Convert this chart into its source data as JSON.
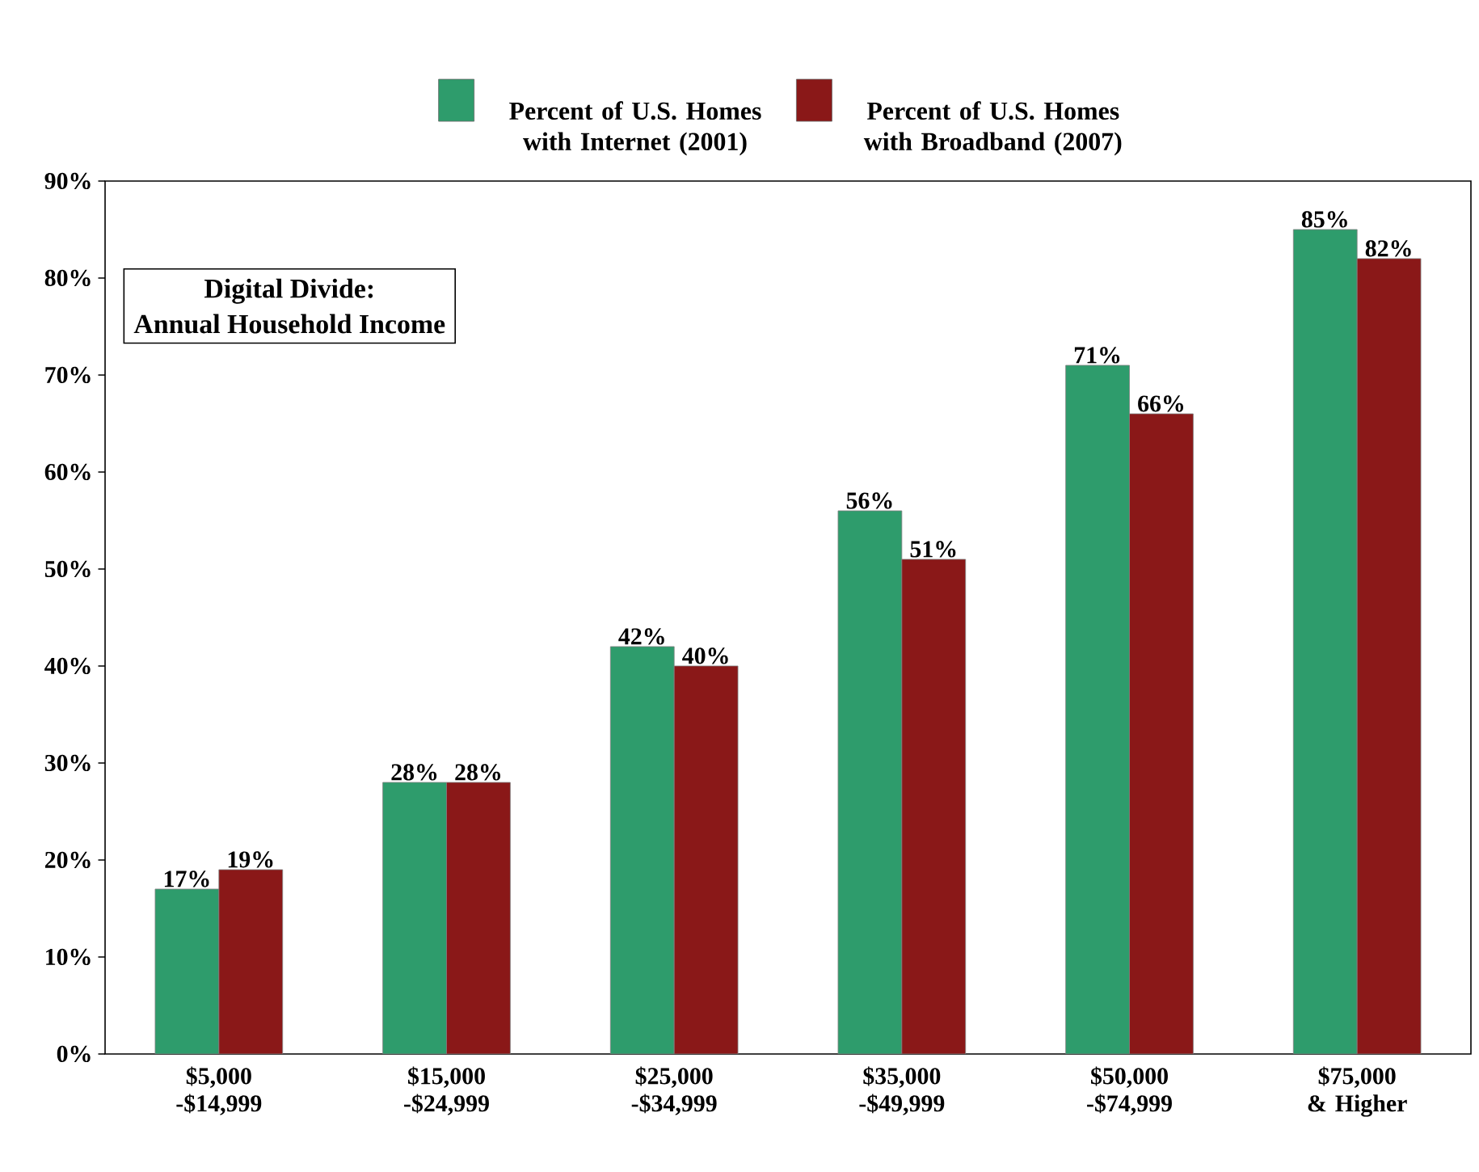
{
  "chart_data": {
    "type": "bar",
    "categories": [
      "$5,000 -$14,999",
      "$15,000 -$24,999",
      "$25,000 -$34,999",
      "$35,000 -$49,999",
      "$50,000 -$74,999",
      "$75,000 & Higher"
    ],
    "series": [
      {
        "name": "Percent of U.S. Homes with Internet (2001)",
        "color": "#2e9c6c",
        "values": [
          17,
          28,
          42,
          56,
          71,
          85
        ],
        "value_labels": [
          "17%",
          "28%",
          "42%",
          "56%",
          "71%",
          "85%"
        ]
      },
      {
        "name": "Percent of U.S. Homes with Broadband (2007)",
        "color": "#8a1818",
        "values": [
          19,
          28,
          40,
          51,
          66,
          82
        ],
        "value_labels": [
          "19%",
          "28%",
          "40%",
          "51%",
          "66%",
          "82%"
        ]
      }
    ],
    "ylim": [
      0,
      90
    ],
    "yticks": [
      {
        "value": 0,
        "label": "0%"
      },
      {
        "value": 10,
        "label": "10%"
      },
      {
        "value": 20,
        "label": "20%"
      },
      {
        "value": 30,
        "label": "30%"
      },
      {
        "value": 40,
        "label": "40%"
      },
      {
        "value": 50,
        "label": "50%"
      },
      {
        "value": 60,
        "label": "60%"
      },
      {
        "value": 70,
        "label": "70%"
      },
      {
        "value": 80,
        "label": "80%"
      },
      {
        "value": 90,
        "label": "90%"
      }
    ],
    "annotations": [
      "Digital Divide:",
      "Annual Household Income"
    ],
    "legend": "top",
    "grid": false
  }
}
